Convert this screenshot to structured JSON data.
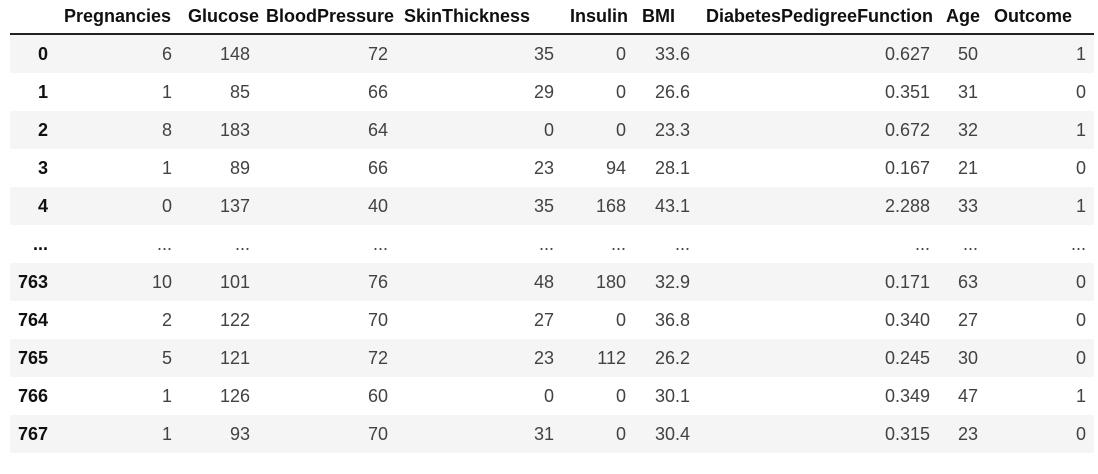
{
  "table": {
    "index_header": "",
    "columns": [
      "Pregnancies",
      "Glucose",
      "BloodPressure",
      "SkinThickness",
      "Insulin",
      "BMI",
      "DiabetesPedigreeFunction",
      "Age",
      "Outcome"
    ],
    "rows": [
      {
        "index": "0",
        "values": [
          "6",
          "148",
          "72",
          "35",
          "0",
          "33.6",
          "0.627",
          "50",
          "1"
        ]
      },
      {
        "index": "1",
        "values": [
          "1",
          "85",
          "66",
          "29",
          "0",
          "26.6",
          "0.351",
          "31",
          "0"
        ]
      },
      {
        "index": "2",
        "values": [
          "8",
          "183",
          "64",
          "0",
          "0",
          "23.3",
          "0.672",
          "32",
          "1"
        ]
      },
      {
        "index": "3",
        "values": [
          "1",
          "89",
          "66",
          "23",
          "94",
          "28.1",
          "0.167",
          "21",
          "0"
        ]
      },
      {
        "index": "4",
        "values": [
          "0",
          "137",
          "40",
          "35",
          "168",
          "43.1",
          "2.288",
          "33",
          "1"
        ]
      },
      {
        "index": "...",
        "values": [
          "...",
          "...",
          "...",
          "...",
          "...",
          "...",
          "...",
          "...",
          "..."
        ]
      },
      {
        "index": "763",
        "values": [
          "10",
          "101",
          "76",
          "48",
          "180",
          "32.9",
          "0.171",
          "63",
          "0"
        ]
      },
      {
        "index": "764",
        "values": [
          "2",
          "122",
          "70",
          "27",
          "0",
          "36.8",
          "0.340",
          "27",
          "0"
        ]
      },
      {
        "index": "765",
        "values": [
          "5",
          "121",
          "72",
          "23",
          "112",
          "26.2",
          "0.245",
          "30",
          "0"
        ]
      },
      {
        "index": "766",
        "values": [
          "1",
          "126",
          "60",
          "0",
          "0",
          "30.1",
          "0.349",
          "47",
          "1"
        ]
      },
      {
        "index": "767",
        "values": [
          "1",
          "93",
          "70",
          "31",
          "0",
          "30.4",
          "0.315",
          "23",
          "0"
        ]
      }
    ],
    "colors": {
      "stripe": "#f5f5f5",
      "header_text": "#101010",
      "cell_text": "#424242",
      "header_border": "#222222",
      "background": "#ffffff"
    }
  }
}
